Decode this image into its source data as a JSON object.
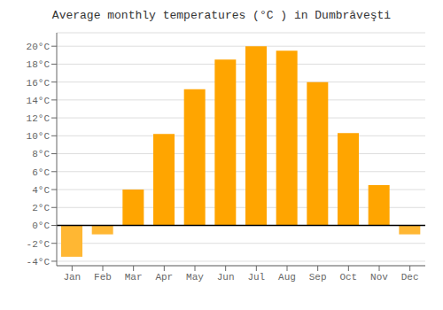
{
  "chart_data": {
    "type": "bar",
    "title": "Average monthly temperatures (°C ) in Dumbrăveşti",
    "categories": [
      "Jan",
      "Feb",
      "Mar",
      "Apr",
      "May",
      "Jun",
      "Jul",
      "Aug",
      "Sep",
      "Oct",
      "Nov",
      "Dec"
    ],
    "values": [
      -3.5,
      -1.0,
      4.0,
      10.2,
      15.2,
      18.5,
      20.0,
      19.5,
      16.0,
      10.3,
      4.5,
      -1.0
    ],
    "colors": [
      "#FFB733",
      "#FFB733",
      "#FFA500",
      "#FFA500",
      "#FFA500",
      "#FFA500",
      "#FFA500",
      "#FFA500",
      "#FFA500",
      "#FFA500",
      "#FFA500",
      "#FFB733"
    ],
    "ylim": [
      -4.5,
      21.5
    ],
    "yticks": [
      {
        "value": -4,
        "label": "-4°C"
      },
      {
        "value": -2,
        "label": "-2°C"
      },
      {
        "value": 0,
        "label": "0°C"
      },
      {
        "value": 2,
        "label": "2°C"
      },
      {
        "value": 4,
        "label": "4°C"
      },
      {
        "value": 6,
        "label": "6°C"
      },
      {
        "value": 8,
        "label": "8°C"
      },
      {
        "value": 10,
        "label": "10°C"
      },
      {
        "value": 12,
        "label": "12°C"
      },
      {
        "value": 14,
        "label": "14°C"
      },
      {
        "value": 16,
        "label": "16°C"
      },
      {
        "value": 18,
        "label": "18°C"
      },
      {
        "value": 20,
        "label": "20°C"
      }
    ],
    "grid": true
  }
}
